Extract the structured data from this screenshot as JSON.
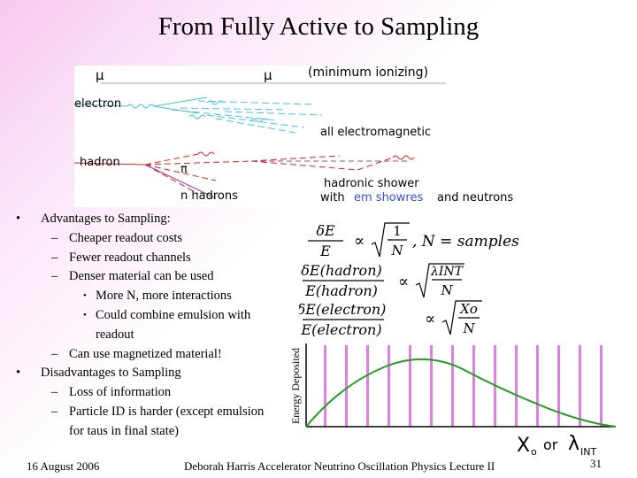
{
  "title": "From Fully Active to Sampling",
  "diagram": {
    "mu_left": "μ",
    "mu_right": "μ",
    "min_ionizing": "(minimum ionizing)",
    "electron": "electron",
    "all_em": "all electromagnetic",
    "hadron": "hadron",
    "pi": "π",
    "n_hadrons": "n hadrons",
    "hadronic_shower": "hadronic shower",
    "with": "with",
    "em_showers": "em showres",
    "and_neutrons": "and neutrons"
  },
  "bullets": {
    "advantages": "Advantages to Sampling:",
    "cheaper": "Cheaper readout costs",
    "fewer": "Fewer readout channels",
    "denser": "Denser material can be used",
    "more_n": "More N, more interactions",
    "combine1": "Could combine emulsion with",
    "combine2": "readout",
    "magnetized": "Can use magnetized material!",
    "disadvantages": "Disadvantages to Sampling",
    "loss": "Loss of information",
    "particle_id1": "Particle ID is harder (except emulsion",
    "particle_id2": "for taus in final state)"
  },
  "formulas": {
    "f1_num": "δE",
    "f1_den": "E",
    "f1_rnum": "1",
    "f1_rden": "N",
    "f1_tail": ", N = samples",
    "f2_num": "δE(hadron)",
    "f2_den": "E(hadron)",
    "f2_rnum": "λINT",
    "f2_rden": "N",
    "f3_num": "δE(electron)",
    "f3_den": "E(electron)",
    "f3_rnum": "Xo",
    "f3_rden": "N",
    "prop": "∝"
  },
  "plot": {
    "ylabel": "Energy Deposited",
    "xlabel_x0": "X",
    "xlabel_o": "o",
    "xlabel_or": "or",
    "xlabel_lambda": "λ",
    "xlabel_int": "INT",
    "curve_color": "#1ea01e",
    "bar_color": "#e080e0"
  },
  "footer": {
    "date": "16 August 2006",
    "center": "Deborah Harris Accelerator Neutrino Oscillation Physics Lecture II",
    "page": "31"
  }
}
